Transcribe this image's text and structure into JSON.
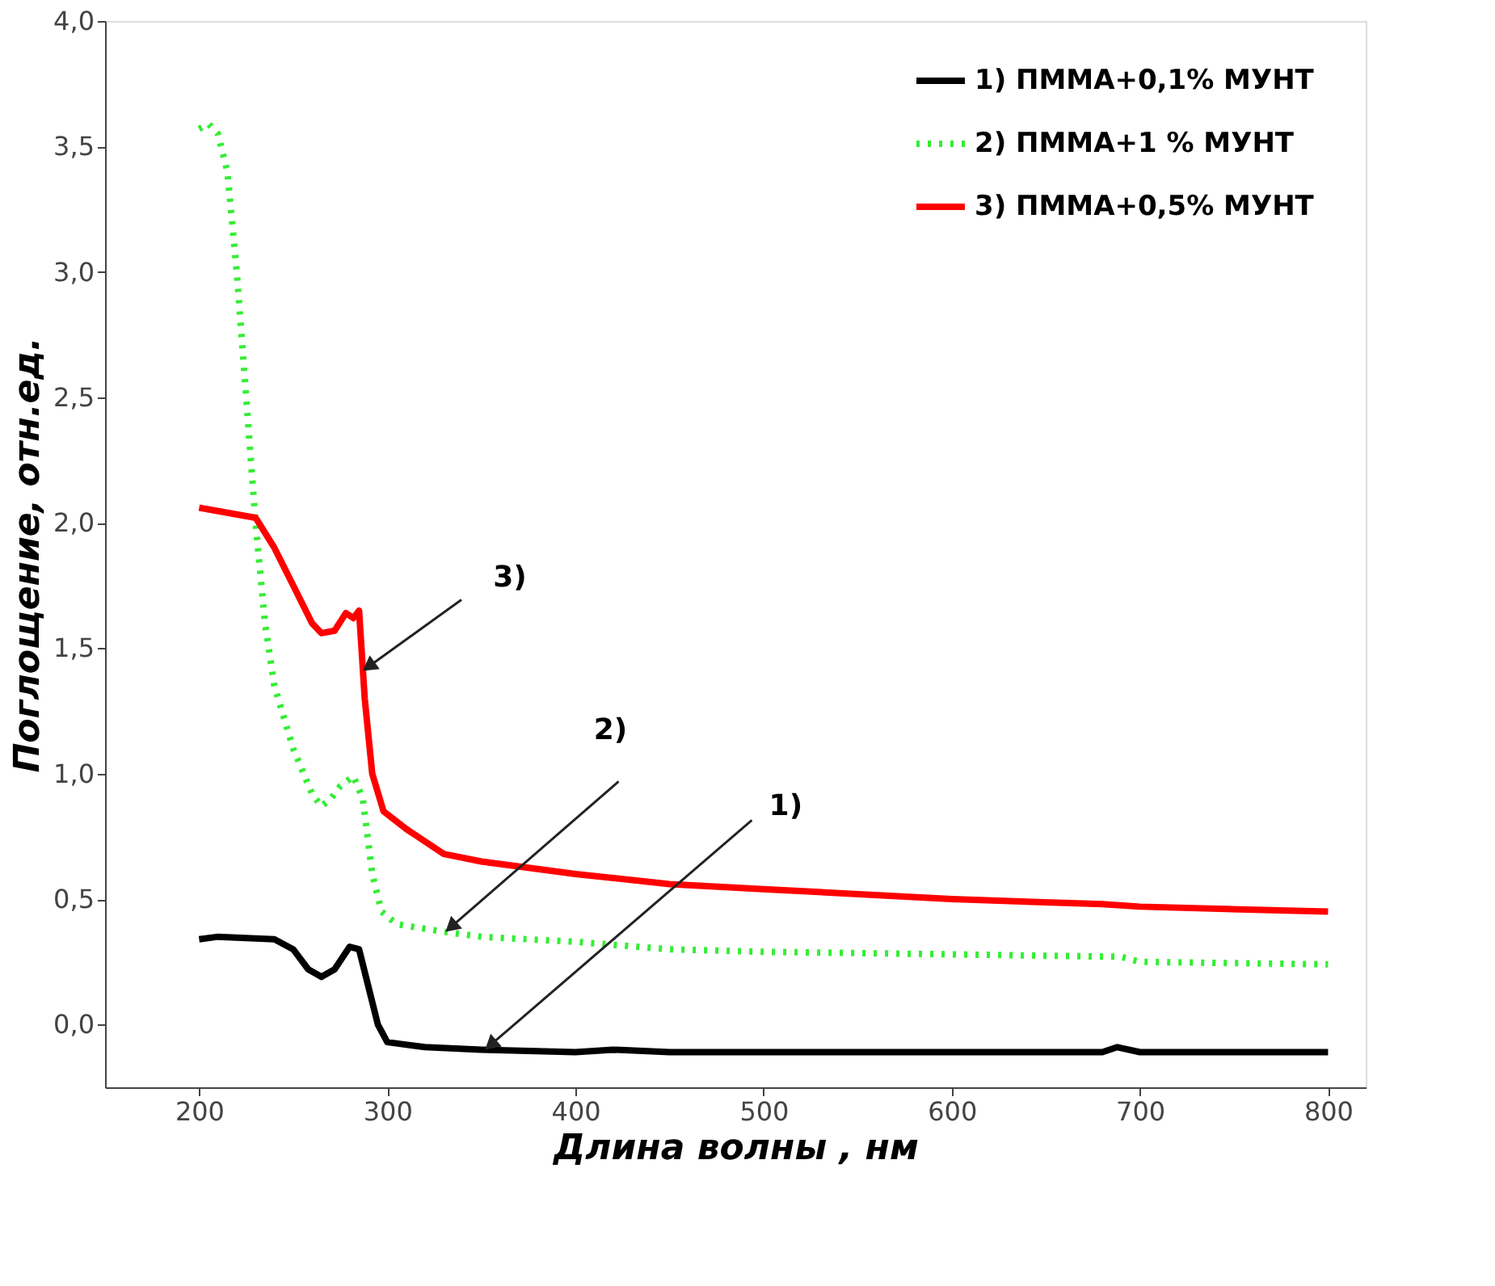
{
  "chart_data": {
    "type": "line",
    "xlabel": "Длина волны , нм",
    "ylabel": "Поглощение, отн.ед.",
    "xlim": [
      150,
      820
    ],
    "ylim": [
      -0.25,
      4.0
    ],
    "xticks": [
      200,
      300,
      400,
      500,
      600,
      700,
      800
    ],
    "yticks": [
      {
        "value": 0,
        "label": "0,0"
      },
      {
        "value": 0.5,
        "label": "0,5"
      },
      {
        "value": 1,
        "label": "1,0"
      },
      {
        "value": 1.5,
        "label": "1,5"
      },
      {
        "value": 2,
        "label": "2,0"
      },
      {
        "value": 2.5,
        "label": "2,5"
      },
      {
        "value": 3,
        "label": "3,0"
      },
      {
        "value": 3.5,
        "label": "3,5"
      },
      {
        "value": 4,
        "label": "4,0"
      }
    ],
    "grid": false,
    "legend": "top right",
    "series": [
      {
        "name": "1)   ПММА+0,1% МУНТ",
        "color": "#000000",
        "line_style": "solid",
        "x": [
          200,
          210,
          240,
          250,
          258,
          265,
          272,
          280,
          285,
          290,
          295,
          300,
          320,
          350,
          400,
          420,
          450,
          500,
          600,
          680,
          688,
          700,
          800
        ],
        "values": [
          0.34,
          0.35,
          0.34,
          0.3,
          0.22,
          0.19,
          0.22,
          0.31,
          0.3,
          0.15,
          0.0,
          -0.07,
          -0.09,
          -0.1,
          -0.11,
          -0.1,
          -0.11,
          -0.11,
          -0.11,
          -0.11,
          -0.09,
          -0.11,
          -0.11
        ]
      },
      {
        "name": "2)   ПММА+1 %   МУНТ",
        "color": "#33ee33",
        "line_style": "dotted",
        "x": [
          200,
          205,
          210,
          215,
          220,
          225,
          230,
          235,
          240,
          250,
          260,
          265,
          270,
          275,
          282,
          287,
          292,
          297,
          305,
          330,
          350,
          400,
          450,
          500,
          600,
          690,
          700,
          800
        ],
        "values": [
          3.57,
          3.59,
          3.55,
          3.4,
          3.0,
          2.5,
          2.0,
          1.6,
          1.35,
          1.1,
          0.92,
          0.87,
          0.9,
          0.95,
          0.99,
          0.9,
          0.6,
          0.45,
          0.4,
          0.37,
          0.35,
          0.33,
          0.3,
          0.29,
          0.28,
          0.27,
          0.25,
          0.24
        ]
      },
      {
        "name": "3)   ПММА+0,5% МУНТ",
        "color": "#ff0000",
        "line_style": "solid",
        "x": [
          200,
          215,
          230,
          240,
          250,
          260,
          265,
          272,
          278,
          282,
          285,
          288,
          292,
          298,
          310,
          330,
          350,
          400,
          450,
          500,
          600,
          680,
          700,
          800
        ],
        "values": [
          2.06,
          2.04,
          2.02,
          1.9,
          1.75,
          1.6,
          1.56,
          1.57,
          1.64,
          1.62,
          1.65,
          1.3,
          1.0,
          0.85,
          0.78,
          0.68,
          0.65,
          0.6,
          0.56,
          0.54,
          0.5,
          0.48,
          0.47,
          0.45
        ]
      }
    ],
    "annotations": [
      {
        "text": "3)",
        "x": 287,
        "y": 1.41
      },
      {
        "text": "2)",
        "x": 331,
        "y": 0.37
      },
      {
        "text": "1)",
        "x": 352,
        "y": -0.1
      }
    ]
  }
}
